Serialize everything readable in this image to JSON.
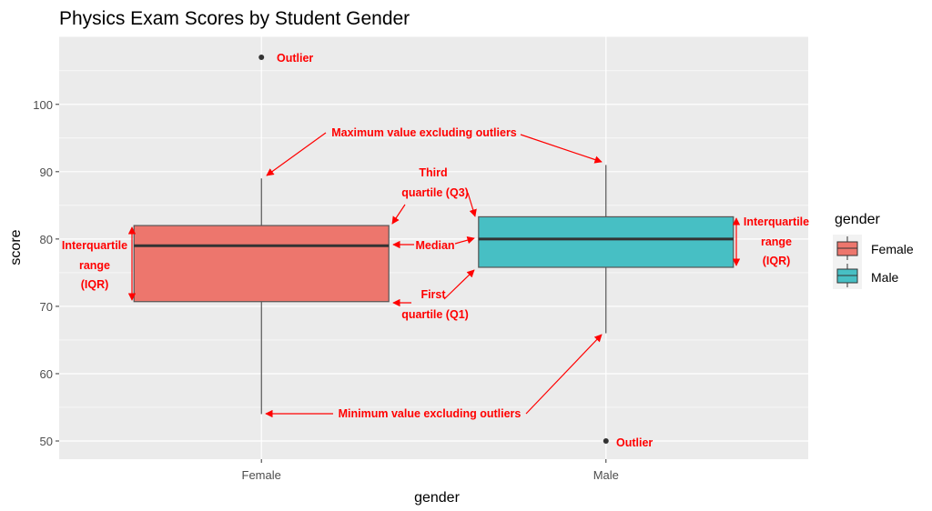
{
  "chart_data": {
    "type": "boxplot",
    "title": "Physics Exam Scores by Student Gender",
    "xlabel": "gender",
    "ylabel": "score",
    "ylim": [
      47.3,
      110.1
    ],
    "yticks": [
      50,
      60,
      70,
      80,
      90,
      100
    ],
    "grid": true,
    "categories": [
      "Female",
      "Male"
    ],
    "series": [
      {
        "name": "Female",
        "color": "#ED766D",
        "min": 54,
        "q1": 70.7,
        "median": 79,
        "q3": 82,
        "max": 89,
        "outliers": [
          107
        ]
      },
      {
        "name": "Male",
        "color": "#47BFC4",
        "min": 66,
        "q1": 75.8,
        "median": 80,
        "q3": 83.3,
        "max": 91,
        "outliers": [
          50
        ]
      }
    ],
    "legend": {
      "title": "gender",
      "position": "right",
      "entries": [
        "Female",
        "Male"
      ]
    },
    "annotations": {
      "outlier": "Outlier",
      "max": "Maximum value excluding outliers",
      "min": "Minimum value excluding outliers",
      "q3": [
        "Third",
        "quartile (Q3)"
      ],
      "median": "Median",
      "q1": [
        "First",
        "quartile (Q1)"
      ],
      "iqr": [
        "Interquartile",
        "range",
        "(IQR)"
      ],
      "color": "#FF0000"
    }
  }
}
